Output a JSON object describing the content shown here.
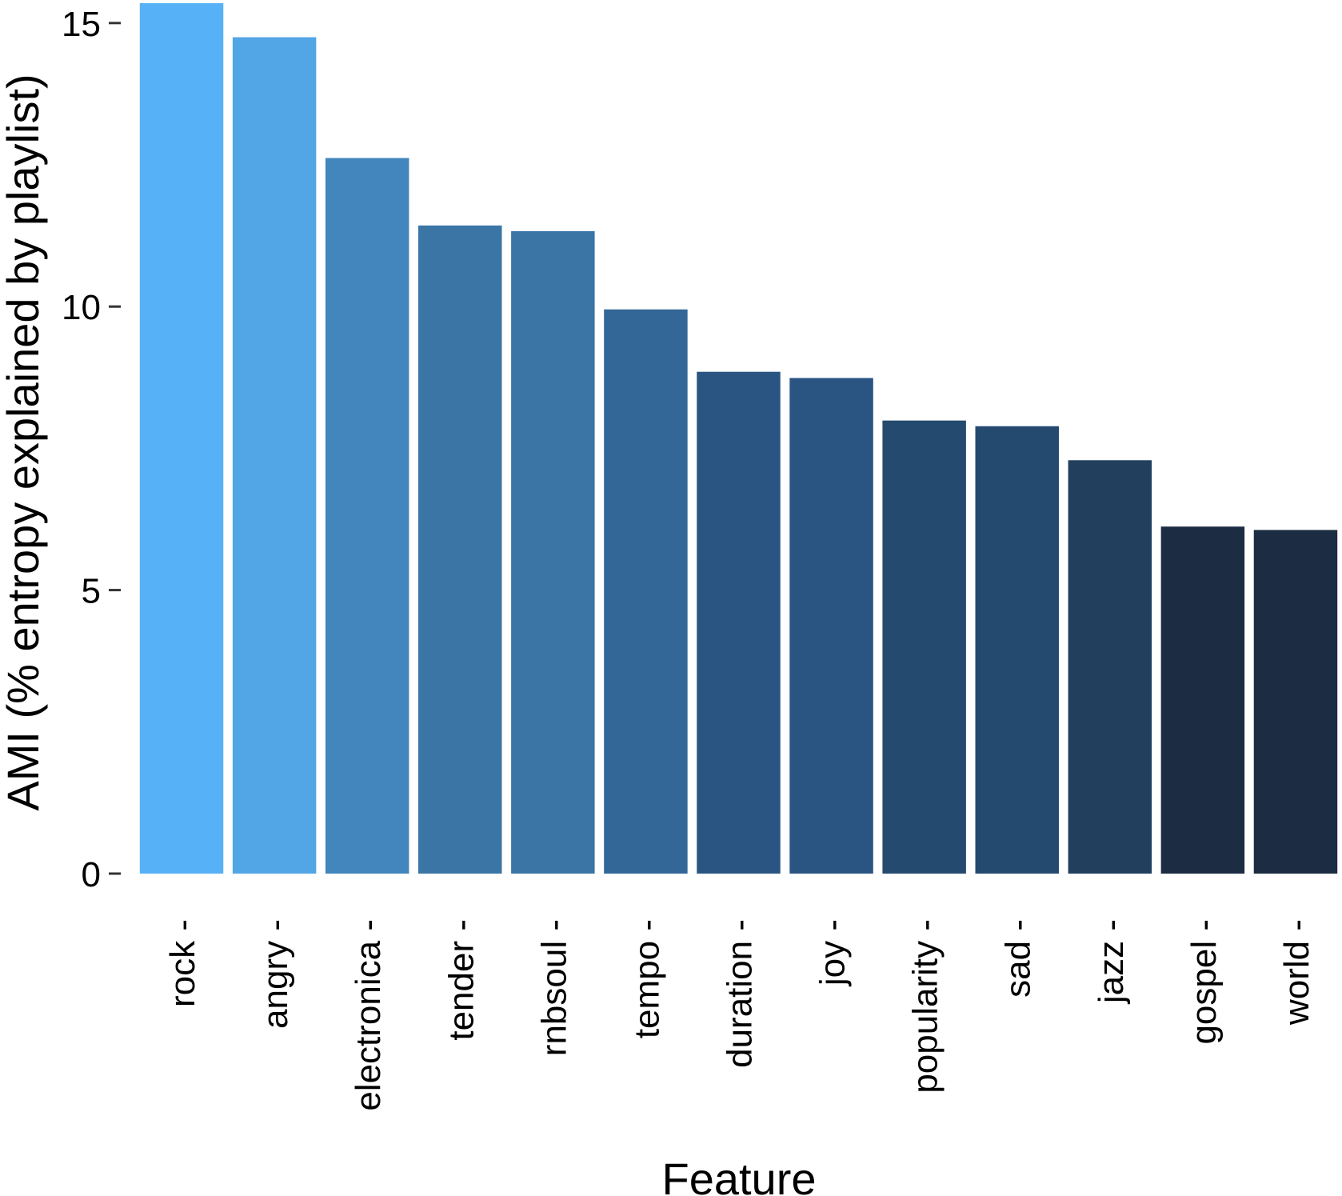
{
  "chart_data": {
    "type": "bar",
    "categories": [
      "rock",
      "angry",
      "electronica",
      "tender",
      "rnbsoul",
      "tempo",
      "duration",
      "joy",
      "popularity",
      "sad",
      "jazz",
      "gospel",
      "world"
    ],
    "values": [
      15.35,
      14.75,
      12.62,
      11.43,
      11.33,
      9.95,
      8.85,
      8.74,
      7.99,
      7.89,
      7.29,
      6.12,
      6.06
    ],
    "colors": [
      "#56b1f7",
      "#52a6e6",
      "#4386bd",
      "#3a75a6",
      "#3a75a6",
      "#336797",
      "#2a5583",
      "#2a5583",
      "#244a6f",
      "#244a6f",
      "#223f5e",
      "#1c2c42",
      "#1c2c42"
    ],
    "xlabel": "Feature",
    "ylabel": "AMI (% entropy explained by playlist)",
    "yticks": [
      0,
      5,
      10,
      15
    ],
    "ylim": [
      0,
      15.35
    ],
    "grid": false,
    "legend": "none"
  }
}
